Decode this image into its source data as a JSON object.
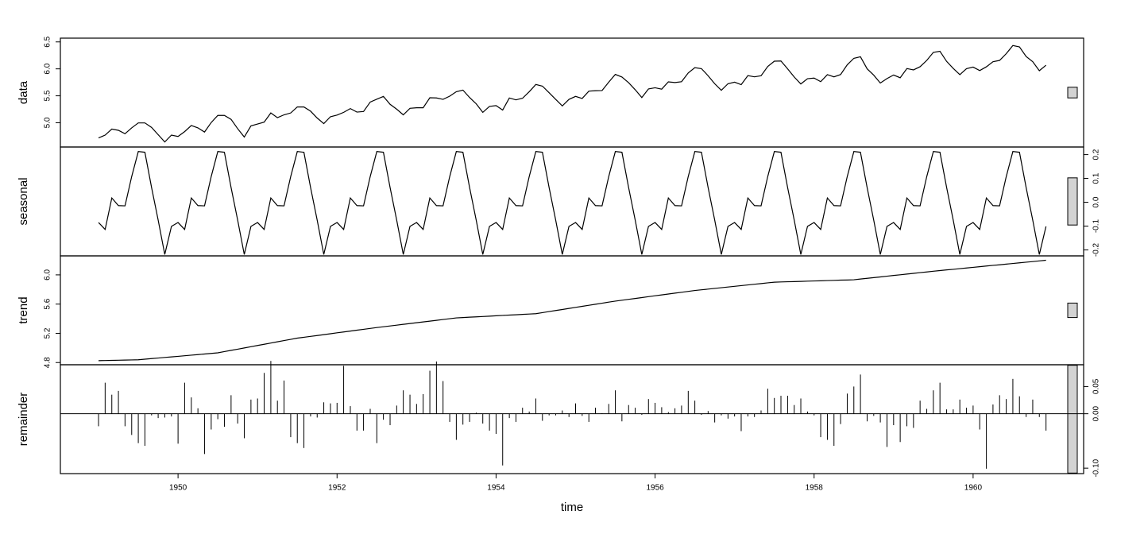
{
  "chart_data": {
    "type": "decomposition",
    "xlabel": "time",
    "xlim": [
      1948.52,
      1961.39
    ],
    "xticks": [
      1950,
      1952,
      1954,
      1956,
      1958,
      1960
    ],
    "x": [
      1949,
      1949.083,
      1949.167,
      1949.25,
      1949.333,
      1949.417,
      1949.5,
      1949.583,
      1949.667,
      1949.75,
      1949.833,
      1949.917,
      1950,
      1950.083,
      1950.167,
      1950.25,
      1950.333,
      1950.417,
      1950.5,
      1950.583,
      1950.667,
      1950.75,
      1950.833,
      1950.917,
      1951,
      1951.083,
      1951.167,
      1951.25,
      1951.333,
      1951.417,
      1951.5,
      1951.583,
      1951.667,
      1951.75,
      1951.833,
      1951.917,
      1952,
      1952.083,
      1952.167,
      1952.25,
      1952.333,
      1952.417,
      1952.5,
      1952.583,
      1952.667,
      1952.75,
      1952.833,
      1952.917,
      1953,
      1953.083,
      1953.167,
      1953.25,
      1953.333,
      1953.417,
      1953.5,
      1953.583,
      1953.667,
      1953.75,
      1953.833,
      1953.917,
      1954,
      1954.083,
      1954.167,
      1954.25,
      1954.333,
      1954.417,
      1954.5,
      1954.583,
      1954.667,
      1954.75,
      1954.833,
      1954.917,
      1955,
      1955.083,
      1955.167,
      1955.25,
      1955.333,
      1955.417,
      1955.5,
      1955.583,
      1955.667,
      1955.75,
      1955.833,
      1955.917,
      1956,
      1956.083,
      1956.167,
      1956.25,
      1956.333,
      1956.417,
      1956.5,
      1956.583,
      1956.667,
      1956.75,
      1956.833,
      1956.917,
      1957,
      1957.083,
      1957.167,
      1957.25,
      1957.333,
      1957.417,
      1957.5,
      1957.583,
      1957.667,
      1957.75,
      1957.833,
      1957.917,
      1958,
      1958.083,
      1958.167,
      1958.25,
      1958.333,
      1958.417,
      1958.5,
      1958.583,
      1958.667,
      1958.75,
      1958.833,
      1958.917,
      1959,
      1959.083,
      1959.167,
      1959.25,
      1959.333,
      1959.417,
      1959.5,
      1959.583,
      1959.667,
      1959.75,
      1959.833,
      1959.917,
      1960,
      1960.083,
      1960.167,
      1960.25,
      1960.333,
      1960.417,
      1960.5,
      1960.583,
      1960.667,
      1960.75,
      1960.833,
      1960.917
    ],
    "panels": [
      {
        "label": "data",
        "type": "line",
        "axis": "left",
        "color": "#000000",
        "ylim": [
          4.55,
          6.57
        ],
        "yticks": [
          {
            "value": 5,
            "label": "5.0"
          },
          5.5,
          {
            "value": 6,
            "label": "6.0"
          },
          6.5
        ],
        "values": [
          4.718,
          4.771,
          4.883,
          4.86,
          4.796,
          4.905,
          4.997,
          4.997,
          4.913,
          4.779,
          4.644,
          4.771,
          4.745,
          4.836,
          4.949,
          4.905,
          4.828,
          5.004,
          5.136,
          5.136,
          5.063,
          4.89,
          4.736,
          4.942,
          4.977,
          5.011,
          5.182,
          5.094,
          5.147,
          5.182,
          5.293,
          5.293,
          5.215,
          5.088,
          4.984,
          5.112,
          5.142,
          5.193,
          5.263,
          5.198,
          5.209,
          5.384,
          5.438,
          5.489,
          5.342,
          5.252,
          5.147,
          5.268,
          5.278,
          5.278,
          5.464,
          5.46,
          5.434,
          5.493,
          5.576,
          5.606,
          5.468,
          5.352,
          5.193,
          5.303,
          5.318,
          5.236,
          5.46,
          5.425,
          5.455,
          5.576,
          5.71,
          5.68,
          5.557,
          5.434,
          5.313,
          5.434,
          5.489,
          5.451,
          5.587,
          5.595,
          5.598,
          5.753,
          5.897,
          5.849,
          5.743,
          5.613,
          5.468,
          5.628,
          5.649,
          5.624,
          5.759,
          5.746,
          5.762,
          5.924,
          6.023,
          6.004,
          5.872,
          5.724,
          5.602,
          5.724,
          5.753,
          5.707,
          5.875,
          5.852,
          5.872,
          6.045,
          6.142,
          6.146,
          6.001,
          5.849,
          5.72,
          5.817,
          5.829,
          5.762,
          5.892,
          5.852,
          5.894,
          6.075,
          6.196,
          6.225,
          6.001,
          5.883,
          5.737,
          5.82,
          5.886,
          5.835,
          6.006,
          5.981,
          6.04,
          6.157,
          6.306,
          6.326,
          6.138,
          6.009,
          5.892,
          6.004,
          6.033,
          5.969,
          6.038,
          6.133,
          6.157,
          6.282,
          6.433,
          6.407,
          6.23,
          6.133,
          5.966,
          6.068
        ]
      },
      {
        "label": "seasonal",
        "type": "line",
        "axis": "right",
        "color": "#000000",
        "ylim": [
          -0.225,
          0.232
        ],
        "yticks": [
          -0.2,
          -0.1,
          {
            "value": 0,
            "label": "0.0"
          },
          0.1,
          0.2
        ],
        "values": [
          -0.085,
          -0.114,
          0.018,
          -0.014,
          -0.015,
          0.108,
          0.213,
          0.21,
          0.062,
          -0.075,
          -0.219,
          -0.101,
          -0.085,
          -0.114,
          0.018,
          -0.014,
          -0.015,
          0.108,
          0.213,
          0.21,
          0.062,
          -0.075,
          -0.219,
          -0.101,
          -0.085,
          -0.114,
          0.018,
          -0.014,
          -0.015,
          0.108,
          0.213,
          0.21,
          0.062,
          -0.075,
          -0.219,
          -0.101,
          -0.085,
          -0.114,
          0.018,
          -0.014,
          -0.015,
          0.108,
          0.213,
          0.21,
          0.062,
          -0.075,
          -0.219,
          -0.101,
          -0.085,
          -0.114,
          0.018,
          -0.014,
          -0.015,
          0.108,
          0.213,
          0.21,
          0.062,
          -0.075,
          -0.219,
          -0.101,
          -0.085,
          -0.114,
          0.018,
          -0.014,
          -0.015,
          0.108,
          0.213,
          0.21,
          0.062,
          -0.075,
          -0.219,
          -0.101,
          -0.085,
          -0.114,
          0.018,
          -0.014,
          -0.015,
          0.108,
          0.213,
          0.21,
          0.062,
          -0.075,
          -0.219,
          -0.101,
          -0.085,
          -0.114,
          0.018,
          -0.014,
          -0.015,
          0.108,
          0.213,
          0.21,
          0.062,
          -0.075,
          -0.219,
          -0.101,
          -0.085,
          -0.114,
          0.018,
          -0.014,
          -0.015,
          0.108,
          0.213,
          0.21,
          0.062,
          -0.075,
          -0.219,
          -0.101,
          -0.085,
          -0.114,
          0.018,
          -0.014,
          -0.015,
          0.108,
          0.213,
          0.21,
          0.062,
          -0.075,
          -0.219,
          -0.101,
          -0.085,
          -0.114,
          0.018,
          -0.014,
          -0.015,
          0.108,
          0.213,
          0.21,
          0.062,
          -0.075,
          -0.219,
          -0.101,
          -0.085,
          -0.114,
          0.018,
          -0.014,
          -0.015,
          0.108,
          0.213,
          0.21,
          0.062,
          -0.075,
          -0.219,
          -0.101
        ]
      },
      {
        "label": "trend",
        "type": "line",
        "axis": "left",
        "color": "#000000",
        "ylim": [
          4.77,
          6.26
        ],
        "yticks": [
          4.8,
          5.2,
          5.6,
          {
            "value": 6,
            "label": "6.0"
          }
        ],
        "values": [
          4.826,
          4.828,
          4.83,
          4.832,
          4.834,
          4.836,
          4.838,
          4.846,
          4.854,
          4.862,
          4.87,
          4.877,
          4.885,
          4.893,
          4.901,
          4.909,
          4.917,
          4.925,
          4.933,
          4.95,
          4.967,
          4.983,
          5.0,
          5.017,
          5.034,
          5.05,
          5.067,
          5.084,
          5.101,
          5.117,
          5.134,
          5.146,
          5.158,
          5.17,
          5.182,
          5.194,
          5.207,
          5.219,
          5.231,
          5.243,
          5.255,
          5.267,
          5.279,
          5.29,
          5.301,
          5.312,
          5.323,
          5.334,
          5.345,
          5.356,
          5.367,
          5.378,
          5.389,
          5.4,
          5.411,
          5.416,
          5.421,
          5.425,
          5.43,
          5.435,
          5.44,
          5.445,
          5.45,
          5.454,
          5.459,
          5.464,
          5.469,
          5.483,
          5.498,
          5.512,
          5.526,
          5.541,
          5.555,
          5.569,
          5.584,
          5.598,
          5.612,
          5.627,
          5.641,
          5.653,
          5.665,
          5.677,
          5.689,
          5.702,
          5.714,
          5.726,
          5.738,
          5.75,
          5.762,
          5.774,
          5.786,
          5.796,
          5.805,
          5.815,
          5.824,
          5.834,
          5.843,
          5.853,
          5.862,
          5.872,
          5.881,
          5.891,
          5.9,
          5.903,
          5.906,
          5.908,
          5.911,
          5.914,
          5.917,
          5.919,
          5.922,
          5.925,
          5.928,
          5.93,
          5.933,
          5.943,
          5.953,
          5.962,
          5.972,
          5.982,
          5.992,
          6.001,
          6.011,
          6.021,
          6.031,
          6.04,
          6.05,
          6.059,
          6.068,
          6.076,
          6.085,
          6.094,
          6.103,
          6.112,
          6.121,
          6.13,
          6.138,
          6.147,
          6.156,
          6.165,
          6.174,
          6.182,
          6.191,
          6.2
        ]
      },
      {
        "label": "remainder",
        "type": "spike",
        "axis": "right",
        "color": "#000000",
        "ylim": [
          -0.11,
          0.09
        ],
        "yticks": [
          {
            "value": -0.1,
            "label": "-0.10"
          },
          {
            "value": 0,
            "label": "0.00"
          },
          0.05
        ],
        "values": [
          -0.023,
          0.057,
          0.035,
          0.042,
          -0.023,
          -0.039,
          -0.054,
          -0.059,
          -0.003,
          -0.008,
          -0.007,
          -0.005,
          -0.055,
          0.057,
          0.03,
          0.01,
          -0.074,
          -0.029,
          -0.01,
          -0.024,
          0.034,
          -0.018,
          -0.045,
          0.026,
          0.028,
          0.075,
          0.097,
          0.024,
          0.061,
          -0.043,
          -0.054,
          -0.063,
          -0.005,
          -0.007,
          0.021,
          0.019,
          0.02,
          0.088,
          0.014,
          -0.031,
          -0.031,
          0.009,
          -0.054,
          -0.011,
          -0.021,
          0.015,
          0.043,
          0.035,
          0.018,
          0.036,
          0.079,
          0.096,
          0.06,
          -0.015,
          -0.048,
          -0.02,
          -0.015,
          0.002,
          -0.018,
          -0.031,
          -0.037,
          -0.095,
          -0.008,
          -0.015,
          0.011,
          0.004,
          0.028,
          -0.013,
          -0.003,
          -0.003,
          0.006,
          -0.006,
          0.019,
          -0.004,
          -0.015,
          0.011,
          0.001,
          0.018,
          0.043,
          -0.014,
          0.016,
          0.011,
          -0.002,
          0.027,
          0.02,
          0.012,
          0.003,
          0.01,
          0.015,
          0.042,
          0.024,
          -0.002,
          0.005,
          -0.016,
          -0.003,
          -0.009,
          -0.005,
          -0.032,
          -0.005,
          -0.006,
          0.006,
          0.046,
          0.029,
          0.033,
          0.033,
          0.016,
          0.028,
          0.004,
          -0.003,
          -0.043,
          -0.048,
          -0.059,
          -0.019,
          0.037,
          0.05,
          0.072,
          -0.014,
          -0.004,
          -0.016,
          -0.061,
          -0.021,
          -0.052,
          -0.023,
          -0.026,
          0.024,
          0.009,
          0.043,
          0.057,
          0.008,
          0.008,
          0.026,
          0.011,
          0.015,
          -0.029,
          -0.101,
          0.017,
          0.034,
          0.027,
          0.064,
          0.032,
          -0.006,
          0.026,
          -0.006,
          -0.031
        ]
      }
    ]
  }
}
